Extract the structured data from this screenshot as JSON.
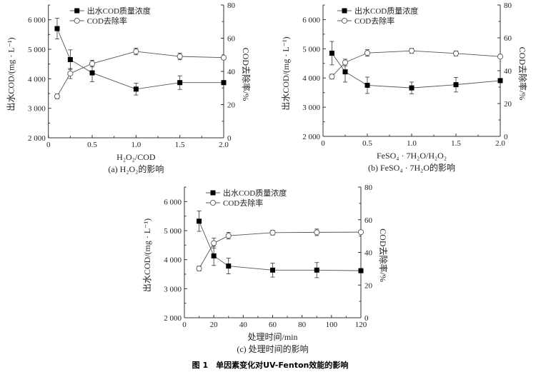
{
  "figure_caption": "图 1　单因素变化对UV-Fenton效能的影响",
  "colors": {
    "cod_marker": "#000000",
    "removal_marker": "#ffffff",
    "line": "#555555",
    "axis": "#333333"
  },
  "chart_data": [
    {
      "type": "line",
      "panel_caption": "(a) H₂O₂的影响",
      "xlabel": "H₂O₂/COD",
      "ylabel_left": "出水COD/(mg · L⁻¹)",
      "ylabel_right": "COD去除率/%",
      "xlim": [
        0,
        2.0
      ],
      "x_ticks": [
        0,
        0.5,
        1.0,
        1.5,
        2.0
      ],
      "x_tick_labels": [
        "0",
        "0.5",
        "1.0",
        "1.5",
        "2.0"
      ],
      "ylim_left": [
        2000,
        6500
      ],
      "y_left_ticks": [
        2000,
        3000,
        4000,
        5000,
        6000
      ],
      "y_left_tick_labels": [
        "2 000",
        "3 000",
        "4 000",
        "5 000",
        "6 000"
      ],
      "ylim_right": [
        0,
        80
      ],
      "y_right_ticks": [
        0,
        20,
        40,
        60,
        80
      ],
      "y_right_tick_labels": [
        "0",
        "20",
        "40",
        "60",
        "80"
      ],
      "legend_placement": "top-center",
      "series": [
        {
          "name": "出水COD质量浓度",
          "axis": "left",
          "marker": "filled-square",
          "x": [
            0.1,
            0.25,
            0.5,
            1.0,
            1.5,
            2.0
          ],
          "y": [
            5700,
            4650,
            4200,
            3650,
            3870,
            3870
          ],
          "error": [
            350,
            330,
            300,
            200,
            230,
            0
          ]
        },
        {
          "name": "COD去除率",
          "axis": "right",
          "marker": "open-circle",
          "x": [
            0.1,
            0.25,
            0.5,
            1.0,
            1.5,
            2.0
          ],
          "y": [
            25,
            38.7,
            44.7,
            52,
            49,
            48.3
          ],
          "error": [
            1.5,
            3,
            2,
            2,
            2,
            0
          ]
        }
      ]
    },
    {
      "type": "line",
      "panel_caption": "(b) FeSO₄ · 7H₂O的影响",
      "xlabel": "FeSO₄ · 7H₂O/H₂O₂",
      "ylabel_left": "出水COD/(mg · L⁻¹)",
      "ylabel_right": "COD去除率/%",
      "xlim": [
        0,
        2.0
      ],
      "x_ticks": [
        0,
        0.5,
        1.0,
        1.5,
        2.0
      ],
      "x_tick_labels": [
        "0",
        "0.5",
        "1.0",
        "1.5",
        "2.0"
      ],
      "ylim_left": [
        2000,
        6500
      ],
      "y_left_ticks": [
        2000,
        3000,
        4000,
        5000,
        6000
      ],
      "y_left_tick_labels": [
        "2 000",
        "3 000",
        "4 000",
        "5 000",
        "6 000"
      ],
      "ylim_right": [
        0,
        80
      ],
      "y_right_ticks": [
        0,
        20,
        40,
        60,
        80
      ],
      "y_right_tick_labels": [
        "0",
        "20",
        "40",
        "60",
        "80"
      ],
      "legend_placement": "top-left",
      "series": [
        {
          "name": "出水COD质量浓度",
          "axis": "left",
          "marker": "filled-square",
          "x": [
            0.1,
            0.25,
            0.5,
            1.0,
            1.5,
            2.0
          ],
          "y": [
            4850,
            4210,
            3750,
            3660,
            3770,
            3910
          ],
          "error": [
            400,
            350,
            280,
            200,
            250,
            0
          ]
        },
        {
          "name": "COD去除率",
          "axis": "right",
          "marker": "open-circle",
          "x": [
            0.1,
            0.25,
            0.5,
            1.0,
            1.5,
            2.0
          ],
          "y": [
            36.4,
            45,
            50.8,
            52.1,
            50.5,
            48.6
          ],
          "error": [
            1.5,
            2,
            2,
            1.5,
            1.5,
            0
          ]
        }
      ]
    },
    {
      "type": "line",
      "panel_caption": "(c) 处理时间的影响",
      "xlabel": "处理时间/min",
      "ylabel_left": "出水COD/(mg · L⁻¹)",
      "ylabel_right": "COD去除率/%",
      "xlim": [
        0,
        120
      ],
      "x_ticks": [
        0,
        20,
        40,
        60,
        80,
        100,
        120
      ],
      "x_tick_labels": [
        "0",
        "20",
        "40",
        "60",
        "80",
        "100",
        "120"
      ],
      "ylim_left": [
        2000,
        6500
      ],
      "y_left_ticks": [
        2000,
        3000,
        4000,
        5000,
        6000
      ],
      "y_left_tick_labels": [
        "2 000",
        "3 000",
        "4 000",
        "5 000",
        "6 000"
      ],
      "ylim_right": [
        0,
        80
      ],
      "y_right_ticks": [
        0,
        20,
        40,
        60,
        80
      ],
      "y_right_tick_labels": [
        "0",
        "20",
        "40",
        "60",
        "80"
      ],
      "legend_placement": "top-center",
      "series": [
        {
          "name": "出水COD质量浓度",
          "axis": "left",
          "marker": "filled-square",
          "x": [
            10,
            20,
            30,
            60,
            90,
            120
          ],
          "y": [
            5325,
            4130,
            3780,
            3640,
            3640,
            3620
          ],
          "error": [
            350,
            330,
            270,
            240,
            260,
            0
          ]
        },
        {
          "name": "COD去除率",
          "axis": "right",
          "marker": "open-circle",
          "x": [
            10,
            20,
            30,
            60,
            90,
            120
          ],
          "y": [
            30.1,
            45.7,
            50.2,
            52.1,
            52.3,
            52.4
          ],
          "error": [
            1.5,
            3,
            2,
            1.5,
            2,
            0
          ]
        }
      ]
    }
  ]
}
